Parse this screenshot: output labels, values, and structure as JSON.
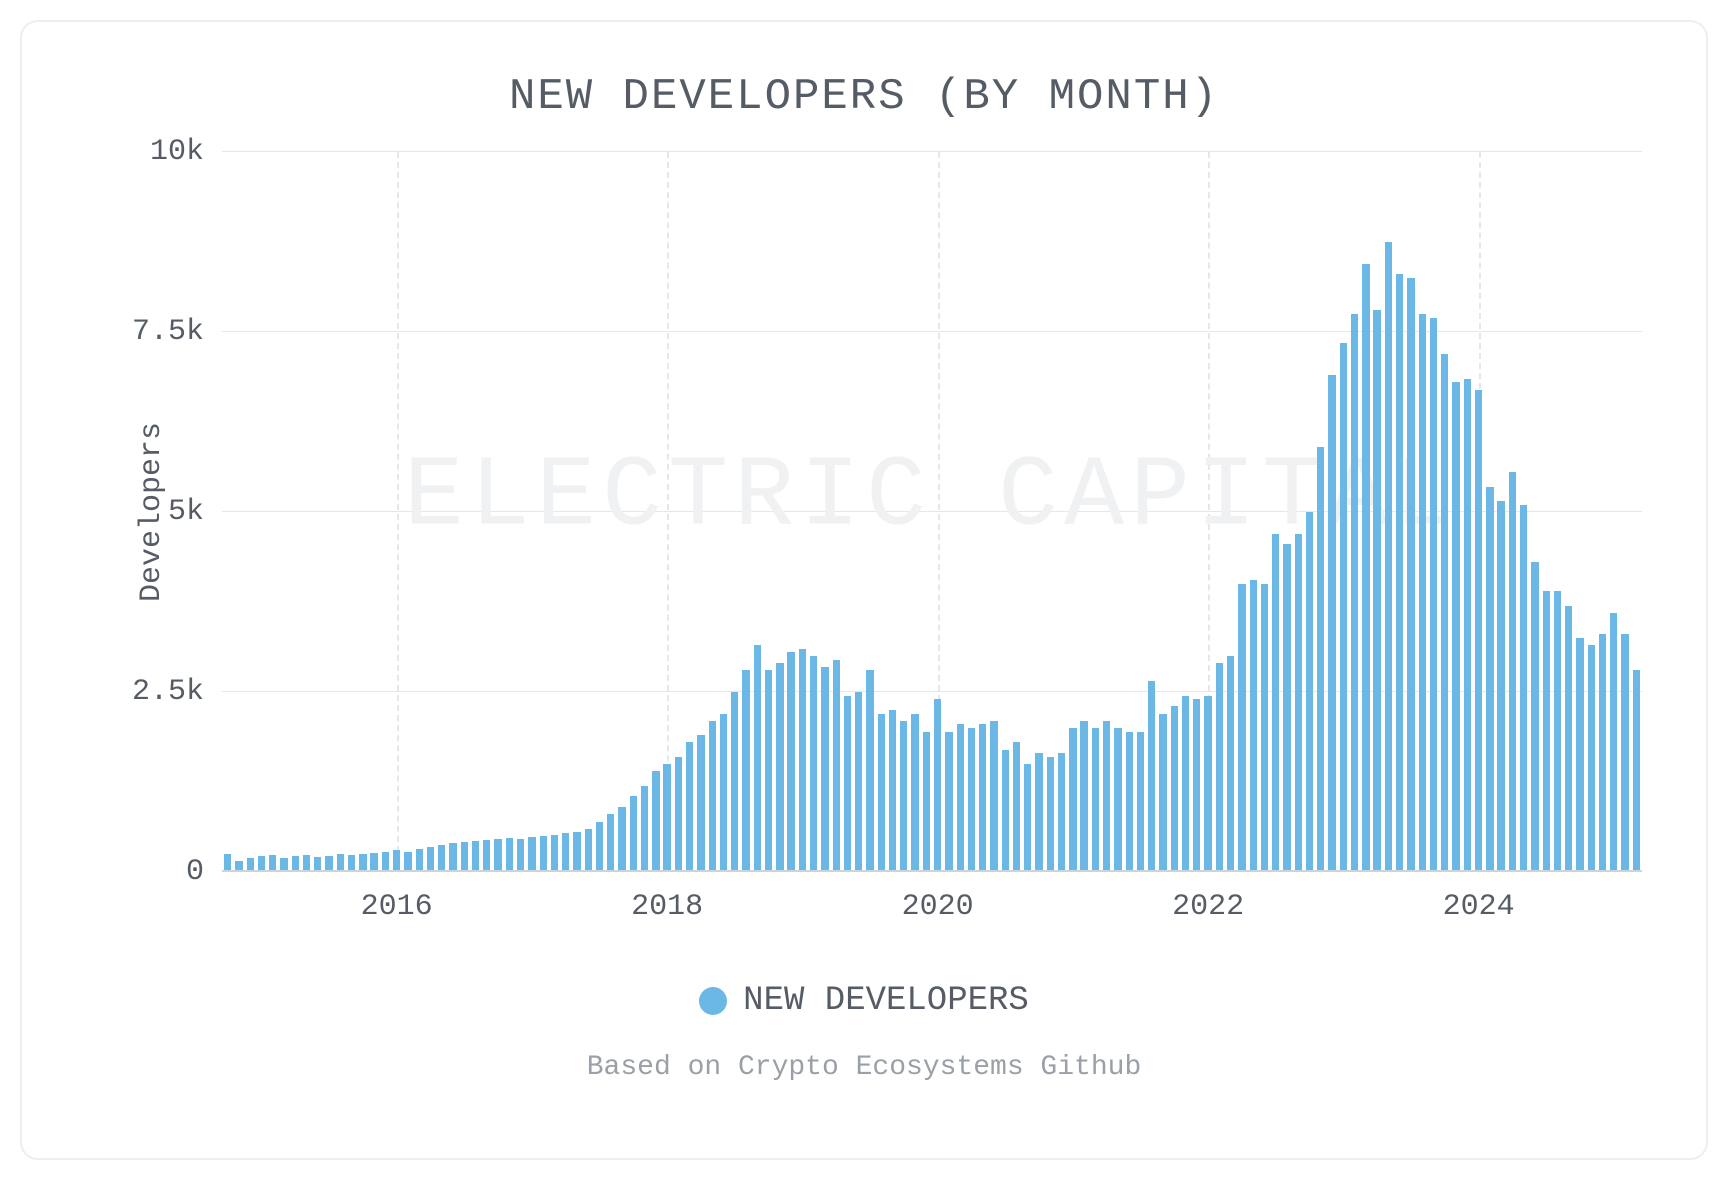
{
  "chart": {
    "type": "bar",
    "title": "NEW DEVELOPERS (BY MONTH)",
    "title_fontsize": 44,
    "title_color": "#565c66",
    "ylabel": "Developers",
    "label_fontsize": 30,
    "label_color": "#565c66",
    "watermark": "ELECTRIC CAPITAL",
    "watermark_color": "#f0f1f3",
    "background_color": "#ffffff",
    "card_border_color": "#eceef0",
    "grid_color": "#e5e7ea",
    "axis_color": "#cfd3d8",
    "bar_color": "#6bb8e6",
    "bar_gap_ratio": 0.35,
    "ylim": [
      0,
      10000
    ],
    "yticks": [
      {
        "v": 0,
        "label": "0"
      },
      {
        "v": 2500,
        "label": "2.5k"
      },
      {
        "v": 5000,
        "label": "5k"
      },
      {
        "v": 7500,
        "label": "7.5k"
      },
      {
        "v": 10000,
        "label": "10k"
      }
    ],
    "x_start_year": 2014,
    "x_start_month": 10,
    "xticks_years": [
      2016,
      2018,
      2020,
      2022,
      2024
    ],
    "values": [
      250,
      150,
      200,
      220,
      230,
      200,
      220,
      230,
      210,
      220,
      250,
      230,
      250,
      260,
      280,
      300,
      280,
      320,
      350,
      370,
      400,
      420,
      430,
      450,
      460,
      470,
      460,
      480,
      500,
      520,
      540,
      560,
      600,
      700,
      800,
      900,
      1050,
      1200,
      1400,
      1500,
      1600,
      1800,
      1900,
      2100,
      2200,
      2500,
      2800,
      3150,
      2800,
      2900,
      3050,
      3100,
      3000,
      2850,
      2950,
      2450,
      2500,
      2800,
      2200,
      2250,
      2100,
      2200,
      1950,
      2400,
      1950,
      2050,
      2000,
      2050,
      2100,
      1700,
      1800,
      1500,
      1650,
      1600,
      1650,
      2000,
      2100,
      2000,
      2100,
      2000,
      1950,
      1950,
      2650,
      2200,
      2300,
      2450,
      2400,
      2450,
      2900,
      3000,
      4000,
      4050,
      4000,
      4700,
      4550,
      4700,
      5000,
      5900,
      6900,
      7350,
      7750,
      8450,
      7800,
      8750,
      8300,
      8250,
      7750,
      7700,
      7200,
      6800,
      6850,
      6700,
      5350,
      5150,
      5550,
      5100,
      4300,
      3900,
      3900,
      3700,
      3250,
      3150,
      3300,
      3600,
      3300,
      2800
    ],
    "legend": {
      "label": "NEW DEVELOPERS",
      "dot_color": "#6bb8e6",
      "fontsize": 34
    },
    "caption": "Based on Crypto Ecosystems Github",
    "caption_color": "#9aa0a8",
    "caption_fontsize": 28
  }
}
